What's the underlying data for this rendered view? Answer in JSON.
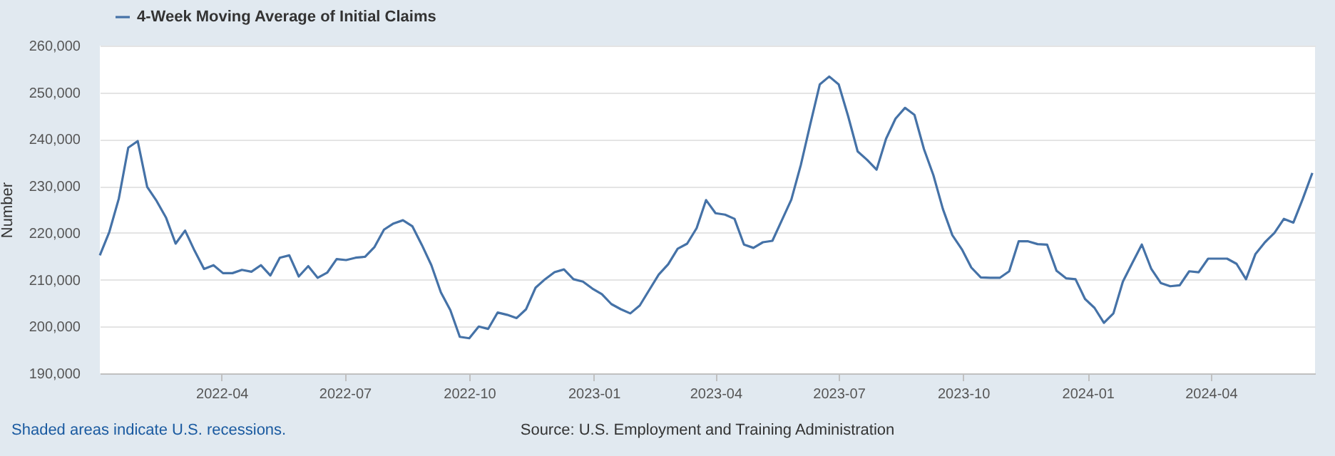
{
  "chart_data": {
    "type": "line",
    "x": [
      "2022-01-01",
      "2022-01-08",
      "2022-01-15",
      "2022-01-22",
      "2022-01-29",
      "2022-02-05",
      "2022-02-12",
      "2022-02-19",
      "2022-02-26",
      "2022-03-05",
      "2022-03-12",
      "2022-03-19",
      "2022-03-26",
      "2022-04-02",
      "2022-04-09",
      "2022-04-16",
      "2022-04-23",
      "2022-04-30",
      "2022-05-07",
      "2022-05-14",
      "2022-05-21",
      "2022-05-28",
      "2022-06-04",
      "2022-06-11",
      "2022-06-18",
      "2022-06-25",
      "2022-07-02",
      "2022-07-09",
      "2022-07-16",
      "2022-07-23",
      "2022-07-30",
      "2022-08-06",
      "2022-08-13",
      "2022-08-20",
      "2022-08-27",
      "2022-09-03",
      "2022-09-10",
      "2022-09-17",
      "2022-09-24",
      "2022-10-01",
      "2022-10-08",
      "2022-10-15",
      "2022-10-22",
      "2022-10-29",
      "2022-11-05",
      "2022-11-12",
      "2022-11-19",
      "2022-11-26",
      "2022-12-03",
      "2022-12-10",
      "2022-12-17",
      "2022-12-24",
      "2022-12-31",
      "2023-01-07",
      "2023-01-14",
      "2023-01-21",
      "2023-01-28",
      "2023-02-04",
      "2023-02-11",
      "2023-02-18",
      "2023-02-25",
      "2023-03-04",
      "2023-03-11",
      "2023-03-18",
      "2023-03-25",
      "2023-04-01",
      "2023-04-08",
      "2023-04-15",
      "2023-04-22",
      "2023-04-29",
      "2023-05-06",
      "2023-05-13",
      "2023-05-20",
      "2023-05-27",
      "2023-06-03",
      "2023-06-10",
      "2023-06-17",
      "2023-06-24",
      "2023-07-01",
      "2023-07-08",
      "2023-07-15",
      "2023-07-22",
      "2023-07-29",
      "2023-08-05",
      "2023-08-12",
      "2023-08-19",
      "2023-08-26",
      "2023-09-02",
      "2023-09-09",
      "2023-09-16",
      "2023-09-23",
      "2023-09-30",
      "2023-10-07",
      "2023-10-14",
      "2023-10-21",
      "2023-10-28",
      "2023-11-04",
      "2023-11-11",
      "2023-11-18",
      "2023-11-25",
      "2023-12-02",
      "2023-12-09",
      "2023-12-16",
      "2023-12-23",
      "2023-12-30",
      "2024-01-06",
      "2024-01-13",
      "2024-01-20",
      "2024-01-27",
      "2024-02-03",
      "2024-02-10",
      "2024-02-17",
      "2024-02-24",
      "2024-03-02",
      "2024-03-09",
      "2024-03-16",
      "2024-03-23",
      "2024-03-30",
      "2024-04-06",
      "2024-04-13",
      "2024-04-20",
      "2024-04-27",
      "2024-05-04",
      "2024-05-11",
      "2024-05-18",
      "2024-05-25",
      "2024-06-01",
      "2024-06-08",
      "2024-06-15"
    ],
    "series": [
      {
        "name": "4-Week Moving Average of Initial Claims",
        "color": "#4572a7",
        "values": [
          215200,
          220200,
          227300,
          238200,
          239600,
          229800,
          226800,
          223200,
          217700,
          220500,
          216200,
          212300,
          213100,
          211400,
          211400,
          212100,
          211700,
          213100,
          210900,
          214700,
          215200,
          210700,
          212900,
          210400,
          211500,
          214400,
          214200,
          214700,
          214900,
          217000,
          220700,
          222000,
          222700,
          221400,
          217400,
          213100,
          207300,
          203500,
          197800,
          197500,
          200000,
          199500,
          203000,
          202500,
          201800,
          203700,
          208300,
          210100,
          211600,
          212200,
          210100,
          209600,
          208100,
          206900,
          204800,
          203700,
          202800,
          204500,
          207800,
          211100,
          213300,
          216600,
          217700,
          221000,
          227000,
          224200,
          223900,
          223000,
          217500,
          216800,
          218000,
          218300,
          222700,
          227100,
          234500,
          243200,
          251700,
          253400,
          251700,
          244900,
          237400,
          235600,
          233500,
          240100,
          244400,
          246700,
          245200,
          237900,
          232300,
          225100,
          219500,
          216500,
          212600,
          210500,
          210400,
          210400,
          211800,
          218200,
          218200,
          217600,
          217500,
          211900,
          210300,
          210100,
          205900,
          204000,
          200800,
          202800,
          209600,
          213600,
          217500,
          212300,
          209300,
          208600,
          208800,
          211800,
          211600,
          214500,
          214500,
          214500,
          213400,
          210100,
          215500,
          218000,
          220000,
          223000,
          222200,
          227300,
          232800
        ]
      }
    ],
    "xlim": [
      "2022-01-01",
      "2024-06-17"
    ],
    "xticks": [
      "2022-04",
      "2022-07",
      "2022-10",
      "2023-01",
      "2023-04",
      "2023-07",
      "2023-10",
      "2024-01",
      "2024-04"
    ],
    "ylim": [
      190000,
      260000
    ],
    "yticks": [
      {
        "value": 190000,
        "label": "190,000"
      },
      {
        "value": 200000,
        "label": "200,000"
      },
      {
        "value": 210000,
        "label": "210,000"
      },
      {
        "value": 220000,
        "label": "220,000"
      },
      {
        "value": 230000,
        "label": "230,000"
      },
      {
        "value": 240000,
        "label": "240,000"
      },
      {
        "value": 250000,
        "label": "250,000"
      },
      {
        "value": 260000,
        "label": "260,000"
      }
    ],
    "ylabel": "Number",
    "grid": "y",
    "legend": "top left",
    "annotations": [
      "Shaded areas indicate U.S. recessions.",
      "Source: U.S. Employment and Training Administration"
    ]
  }
}
